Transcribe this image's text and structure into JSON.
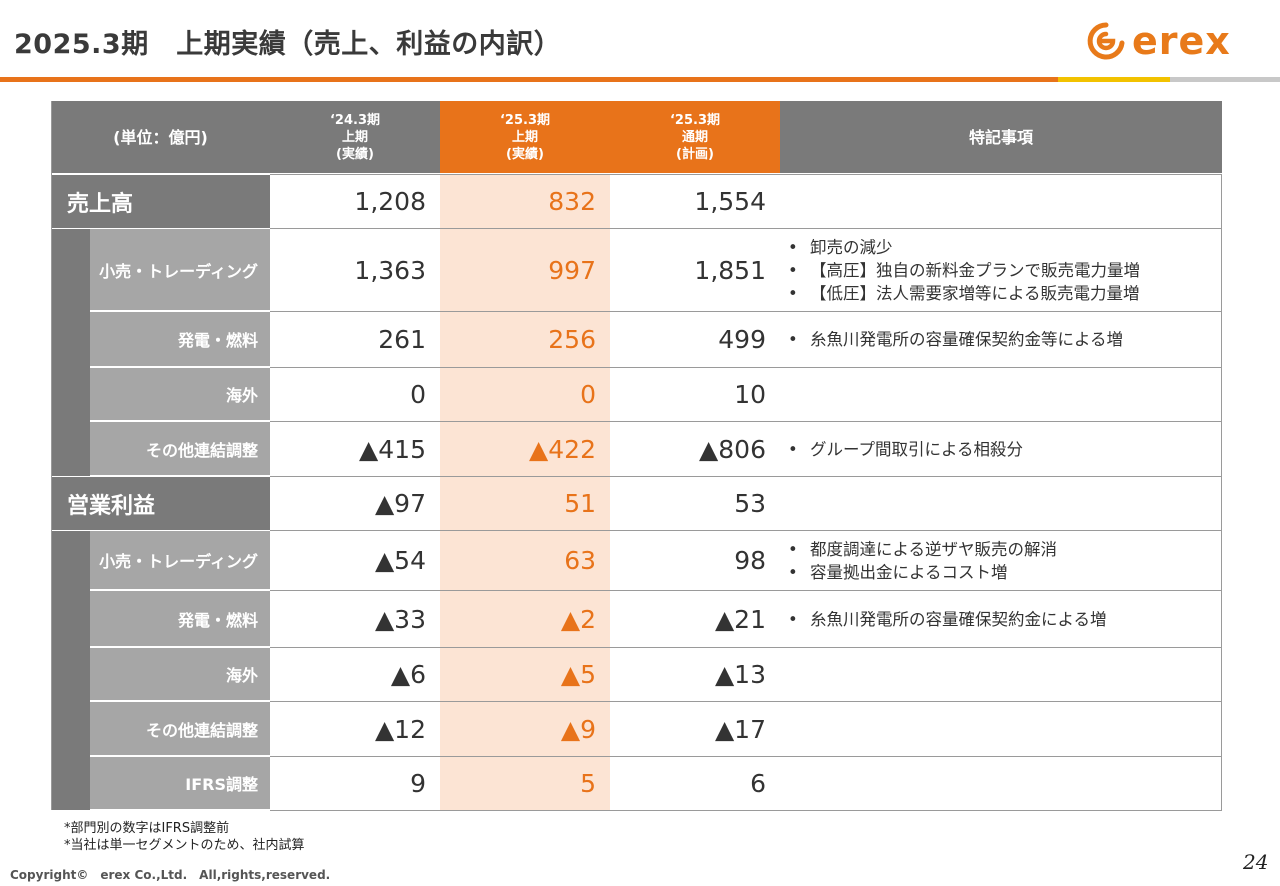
{
  "title": "2025.3期　上期実績（売上、利益の内訳）",
  "logo": {
    "text": "erex",
    "color": "#e87a1a"
  },
  "header": {
    "unit": "(単位：億円)",
    "col1": [
      "‘24.3期",
      "上期",
      "(実績)"
    ],
    "col2": [
      "‘25.3期",
      "上期",
      "(実績)"
    ],
    "col3": [
      "‘25.3期",
      "通期",
      "(計画)"
    ],
    "notes": "特記事項"
  },
  "sections": {
    "sales": {
      "label": "売上高",
      "values": [
        "1,208",
        "832",
        "1,554"
      ],
      "rows": [
        {
          "label": "小売・トレーディング",
          "values": [
            "1,363",
            "997",
            "1,851"
          ],
          "notes": [
            "卸売の減少",
            "【高圧】独自の新料金プランで販売電力量増",
            "【低圧】法人需要家増等による販売電力量増"
          ]
        },
        {
          "label": "発電・燃料",
          "values": [
            "261",
            "256",
            "499"
          ],
          "notes": [
            "糸魚川発電所の容量確保契約金等による増"
          ]
        },
        {
          "label": "海外",
          "values": [
            "0",
            "0",
            "10"
          ],
          "notes": []
        },
        {
          "label": "その他連結調整",
          "values": [
            "▲415",
            "▲422",
            "▲806"
          ],
          "notes": [
            "グループ間取引による相殺分"
          ]
        }
      ]
    },
    "profit": {
      "label": "営業利益",
      "values": [
        "▲97",
        "51",
        "53"
      ],
      "rows": [
        {
          "label": "小売・トレーディング",
          "values": [
            "▲54",
            "63",
            "98"
          ],
          "notes": [
            "都度調達による逆ザヤ販売の解消",
            "容量拠出金によるコスト増"
          ]
        },
        {
          "label": "発電・燃料",
          "values": [
            "▲33",
            "▲2",
            "▲21"
          ],
          "notes": [
            "糸魚川発電所の容量確保契約金による増"
          ]
        },
        {
          "label": "海外",
          "values": [
            "▲6",
            "▲5",
            "▲13"
          ],
          "notes": []
        },
        {
          "label": "その他連結調整",
          "values": [
            "▲12",
            "▲9",
            "▲17"
          ],
          "notes": []
        },
        {
          "label": "IFRS調整",
          "values": [
            "9",
            "5",
            "6"
          ],
          "notes": []
        }
      ]
    }
  },
  "footnotes": [
    "*部門別の数字はIFRS調整前",
    "*当社は単一セグメントのため、社内試算"
  ],
  "copyright": "Copyright©　erex Co.,Ltd.　All,rights,reserved.",
  "page_number": "24",
  "colors": {
    "orange": "#e8731a",
    "highlight": "#fce4d4",
    "header_gray": "#7a7a7a",
    "sub_gray": "#a6a6a6"
  }
}
